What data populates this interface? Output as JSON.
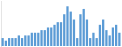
{
  "chart_data": {
    "type": "bar",
    "values": [
      3,
      2,
      3,
      3,
      3,
      4,
      3,
      4,
      4,
      5,
      5,
      5,
      6,
      6,
      7,
      7,
      8,
      9,
      9,
      12,
      15,
      13,
      10,
      3,
      12,
      14,
      10,
      3,
      5,
      3,
      8,
      10,
      6,
      4,
      7,
      8,
      5
    ],
    "color": "#5b9bd5",
    "ylim": [
      0,
      17
    ],
    "grid": false,
    "tick_labels": false
  }
}
